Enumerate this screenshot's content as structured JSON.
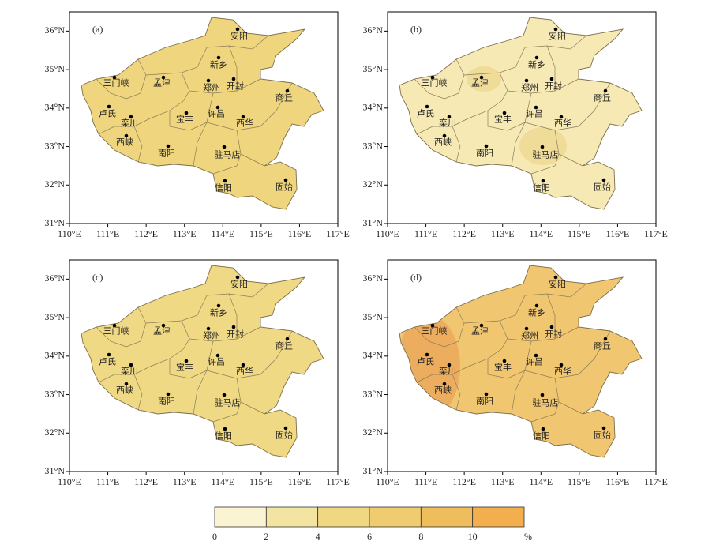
{
  "panels": [
    {
      "label": "(a)",
      "fill": "#efd67e"
    },
    {
      "label": "(b)",
      "fill": "#f6e9b4"
    },
    {
      "label": "(c)",
      "fill": "#f0d984"
    },
    {
      "label": "(d)",
      "fill": "#f0c670"
    }
  ],
  "cities": [
    "安阳",
    "新乡",
    "三门峡",
    "孟津",
    "郑州",
    "开封",
    "商丘",
    "卢氏",
    "栾川",
    "宝丰",
    "许昌",
    "西华",
    "西峡",
    "南阳",
    "驻马店",
    "信阳",
    "固始"
  ],
  "xlim": [
    110,
    117
  ],
  "ylim": [
    31,
    36.5
  ],
  "xticks": [
    {
      "value": 110,
      "label": "110°E"
    },
    {
      "value": 111,
      "label": "111°E"
    },
    {
      "value": 112,
      "label": "112°E"
    },
    {
      "value": 113,
      "label": "113°E"
    },
    {
      "value": 114,
      "label": "114°E"
    },
    {
      "value": 115,
      "label": "115°E"
    },
    {
      "value": 116,
      "label": "116°E"
    },
    {
      "value": 117,
      "label": "117°E"
    }
  ],
  "yticks": [
    {
      "value": 31,
      "label": "31°N"
    },
    {
      "value": 32,
      "label": "32°N"
    },
    {
      "value": 33,
      "label": "33°N"
    },
    {
      "value": 34,
      "label": "34°N"
    },
    {
      "value": 35,
      "label": "35°N"
    },
    {
      "value": 36,
      "label": "36°N"
    }
  ],
  "colorbar": {
    "ticks": [
      0,
      2,
      4,
      6,
      8,
      10
    ],
    "lim": [
      0,
      12
    ],
    "unit": "%",
    "colors": [
      "#fbf4d2",
      "#f4e4a2",
      "#f0d782",
      "#efcc70",
      "#f0bd5c",
      "#f3ae4d"
    ]
  }
}
